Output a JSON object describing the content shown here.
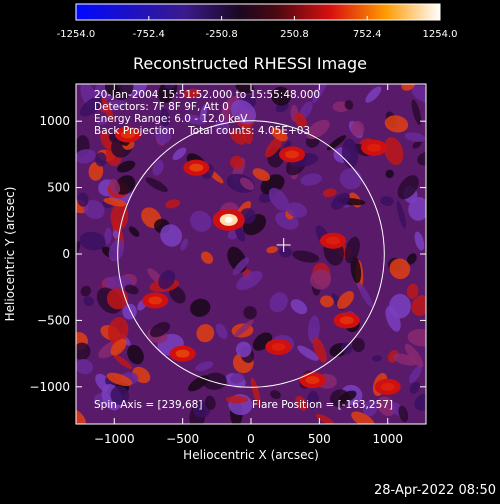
{
  "colorbar": {
    "tick_labels": [
      "-1254.0",
      "-752.4",
      "-250.8",
      "250.8",
      "752.4",
      "1254.0"
    ],
    "tick_values": [
      -1254.0,
      -752.4,
      -250.8,
      250.8,
      752.4,
      1254.0
    ],
    "range": [
      -1254.0,
      1254.0
    ]
  },
  "footer": {
    "timestamp": "28-Apr-2022 08:50"
  },
  "chart_data": {
    "type": "heatmap",
    "title": "Reconstructed RHESSI Image",
    "xlabel": "Heliocentric X (arcsec)",
    "ylabel": "Heliocentric Y (arcsec)",
    "xlim": [
      -1280,
      1280
    ],
    "ylim": [
      -1280,
      1280
    ],
    "xticks": [
      -1000,
      -500,
      0,
      500,
      1000
    ],
    "yticks": [
      -1000,
      -500,
      0,
      500,
      1000
    ],
    "xtick_labels": [
      "−1000",
      "−500",
      "0",
      "500",
      "1000"
    ],
    "ytick_labels": [
      "−1000",
      "−500",
      "0",
      "500",
      "1000"
    ],
    "annotations": [
      "20-Jan-2004 15:51:52.000 to 15:55:48.000",
      "Detectors: 7F 8F 9F, Att 0",
      "Energy Range: 6.0 - 12.0 keV",
      "Back Projection    Total counts: 4.05E+03"
    ],
    "spin_axis": "Spin Axis = [239,68]",
    "flare_position_label": "Flare Position = [-163,257]",
    "flare_position": [
      -163,
      257
    ],
    "crosshair": [
      239,
      68
    ],
    "solar_disk": {
      "center": [
        0,
        0
      ],
      "radius": 975
    },
    "peaks": [
      {
        "x": -163,
        "y": 257,
        "value": 1254
      },
      {
        "x": -400,
        "y": 650,
        "value": 700
      },
      {
        "x": 300,
        "y": 750,
        "value": 650
      },
      {
        "x": 600,
        "y": 100,
        "value": 600
      },
      {
        "x": -700,
        "y": -350,
        "value": 650
      },
      {
        "x": -500,
        "y": -750,
        "value": 700
      },
      {
        "x": 200,
        "y": -700,
        "value": 600
      },
      {
        "x": 700,
        "y": -500,
        "value": 650
      },
      {
        "x": 900,
        "y": 800,
        "value": 600
      },
      {
        "x": -900,
        "y": 900,
        "value": 650
      },
      {
        "x": 450,
        "y": -950,
        "value": 650
      },
      {
        "x": 1000,
        "y": -1000,
        "value": 600
      }
    ]
  }
}
